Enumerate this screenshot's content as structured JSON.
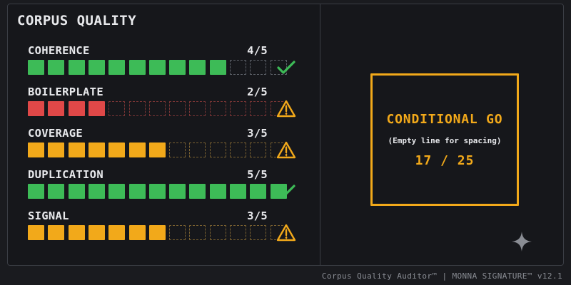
{
  "title": "CORPUS QUALITY",
  "colors": {
    "green": "#3dbb57",
    "red": "#e04848",
    "amber": "#f2a91a",
    "empty_border": "#5c6068"
  },
  "metrics": [
    {
      "name": "COHERENCE",
      "score_label": "4/5",
      "filled": 10,
      "total": 13,
      "color": "green",
      "empty_border": "#5c6068",
      "status": "ok",
      "status_icon": "check-icon"
    },
    {
      "name": "BOILERPLATE",
      "score_label": "2/5",
      "filled": 4,
      "total": 13,
      "color": "red",
      "empty_border": "#7a3535",
      "status": "warn",
      "status_icon": "warning-icon"
    },
    {
      "name": "COVERAGE",
      "score_label": "3/5",
      "filled": 7,
      "total": 13,
      "color": "amber",
      "empty_border": "#7a6130",
      "status": "warn",
      "status_icon": "warning-icon"
    },
    {
      "name": "DUPLICATION",
      "score_label": "5/5",
      "filled": 13,
      "total": 13,
      "color": "green",
      "empty_border": "#5c6068",
      "status": "ok",
      "status_icon": "check-icon"
    },
    {
      "name": "SIGNAL",
      "score_label": "3/5",
      "filled": 7,
      "total": 13,
      "color": "amber",
      "empty_border": "#7a6130",
      "status": "warn",
      "status_icon": "warning-icon"
    }
  ],
  "verdict": {
    "label": "CONDITIONAL GO",
    "note": "(Empty line for spacing)",
    "score": "17 / 25"
  },
  "footer": "Corpus Quality Auditor™ | MONNA SIGNATURE™ v12.1",
  "icons": {
    "sparkle": "sparkle-icon"
  }
}
